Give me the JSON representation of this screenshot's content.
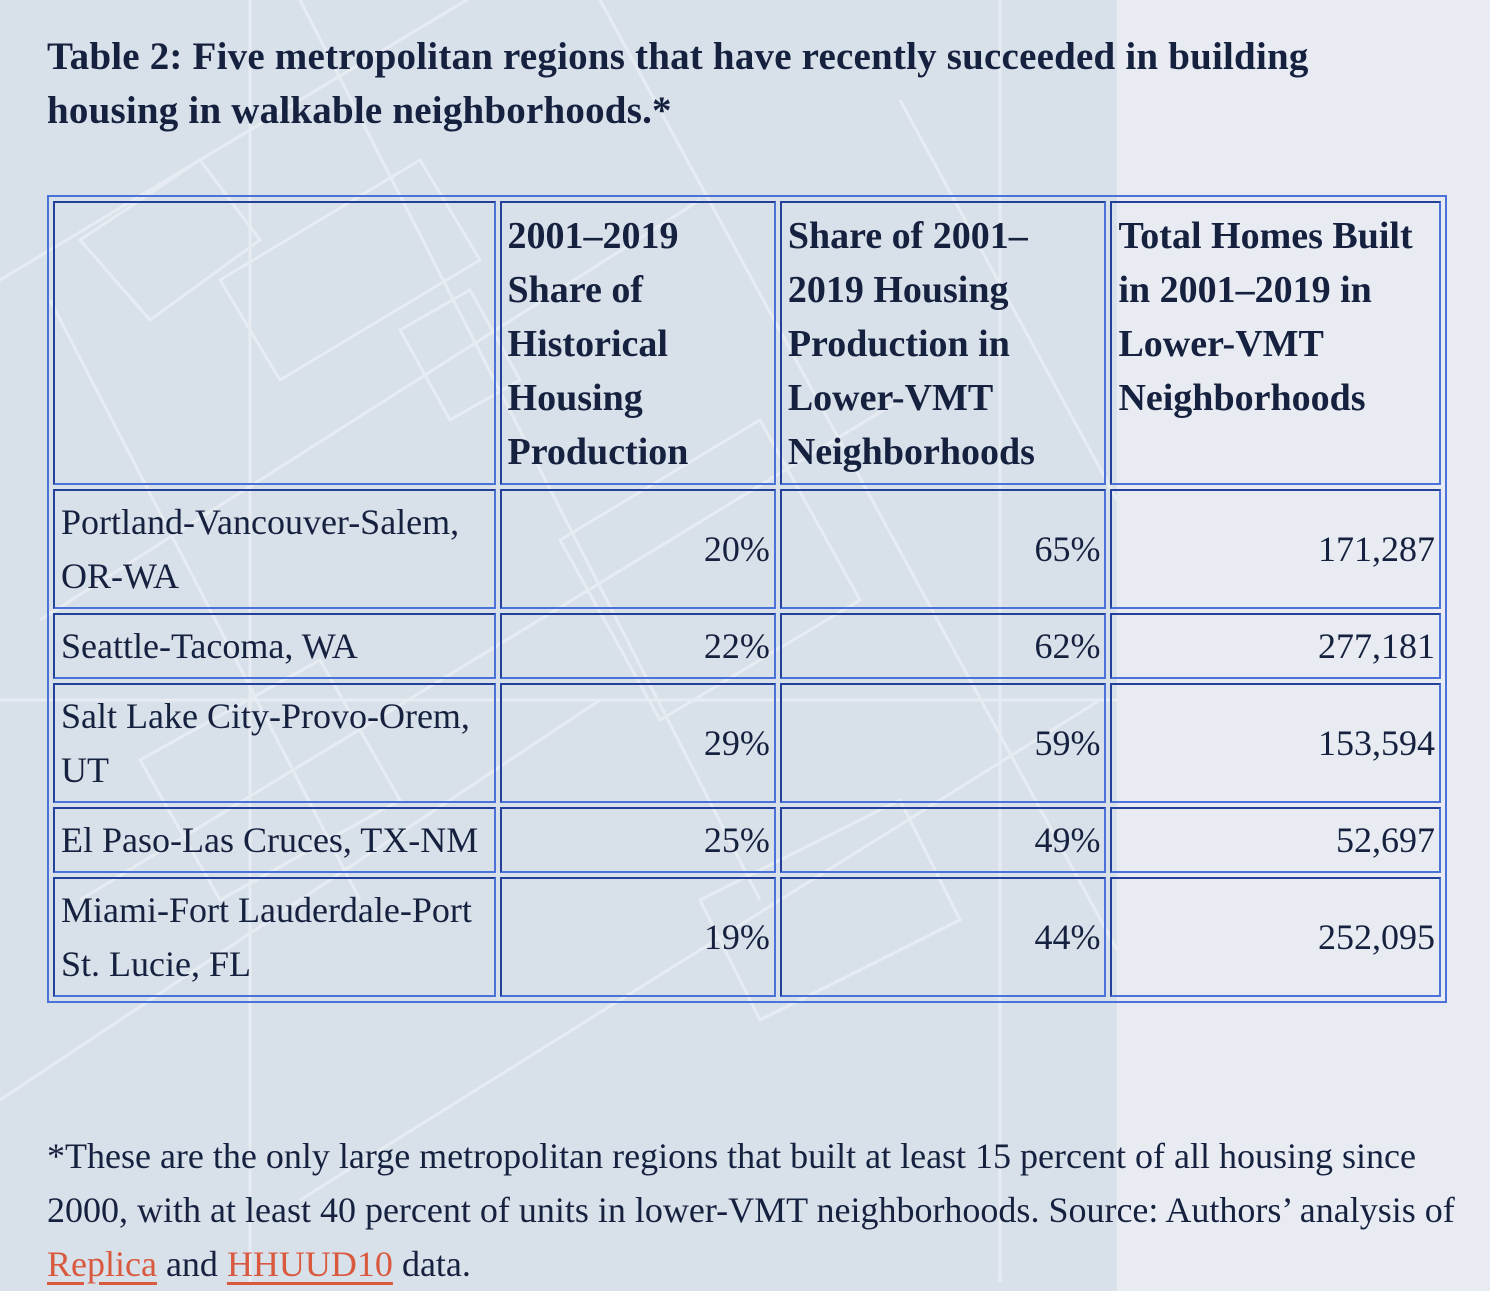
{
  "title": "Table 2: Five metropolitan regions that have recently succeeded in building housing in walkable neighborhoods.*",
  "table": {
    "headers": [
      "",
      "2001–2019 Share of Historical Housing Production",
      "Share of 2001–2019 Housing Production in Lower-VMT Neighborhoods",
      "Total Homes Built in 2001–2019 in Lower-VMT Neighborhoods"
    ],
    "rows": [
      [
        "Portland-Vancouver-Salem, OR-WA",
        "20%",
        "65%",
        "171,287"
      ],
      [
        "Seattle-Tacoma, WA",
        "22%",
        "62%",
        "277,181"
      ],
      [
        "Salt Lake City-Provo-Orem, UT",
        "29%",
        "59%",
        "153,594"
      ],
      [
        "El Paso-Las Cruces, TX-NM",
        "25%",
        "49%",
        "52,697"
      ],
      [
        "Miami-Fort Lauderdale-Port St. Lucie, FL",
        "19%",
        "44%",
        "252,095"
      ]
    ]
  },
  "footnote": {
    "text_before": "*These are the only large metropolitan regions that built at least 15 percent of all housing since 2000, with at least 40 percent of units in lower-VMT neighborhoods. Source: Authors’ analysis of ",
    "link1": "Replica",
    "text_middle": " and ",
    "link2": "HHUUD10",
    "text_after": " data."
  },
  "colors": {
    "text": "#15213f",
    "border": "#4a72d8",
    "link": "#d9593f"
  }
}
